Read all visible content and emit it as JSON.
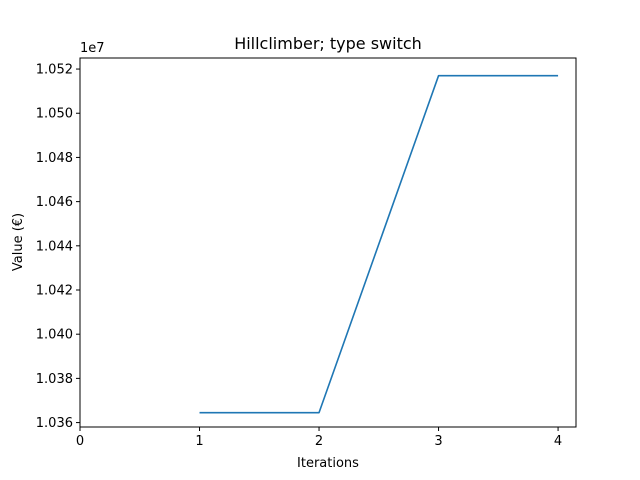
{
  "chart_data": {
    "type": "line",
    "title": "Hillclimber; type switch",
    "xlabel": "Iterations",
    "ylabel": "Value (€)",
    "offset_label": "1e7",
    "x_ticks": [
      0,
      1,
      2,
      3,
      4
    ],
    "x_tick_labels": [
      "0",
      "1",
      "2",
      "3",
      "4"
    ],
    "y_ticks": [
      10360000,
      10380000,
      10400000,
      10420000,
      10440000,
      10460000,
      10480000,
      10500000,
      10520000
    ],
    "y_tick_labels": [
      "1.036",
      "1.038",
      "1.040",
      "1.042",
      "1.044",
      "1.046",
      "1.048",
      "1.050",
      "1.052"
    ],
    "xlim": [
      0,
      4.15
    ],
    "ylim": [
      10358000,
      10525000
    ],
    "grid": false,
    "series": [
      {
        "x": [
          1,
          2,
          3,
          4
        ],
        "values": [
          10364500,
          10364500,
          10517000,
          10517000
        ],
        "color": "#1f77b4"
      }
    ]
  },
  "title": "Hillclimber; type switch",
  "xlabel": "Iterations",
  "ylabel": "Value (€)",
  "offset_label": "1e7"
}
